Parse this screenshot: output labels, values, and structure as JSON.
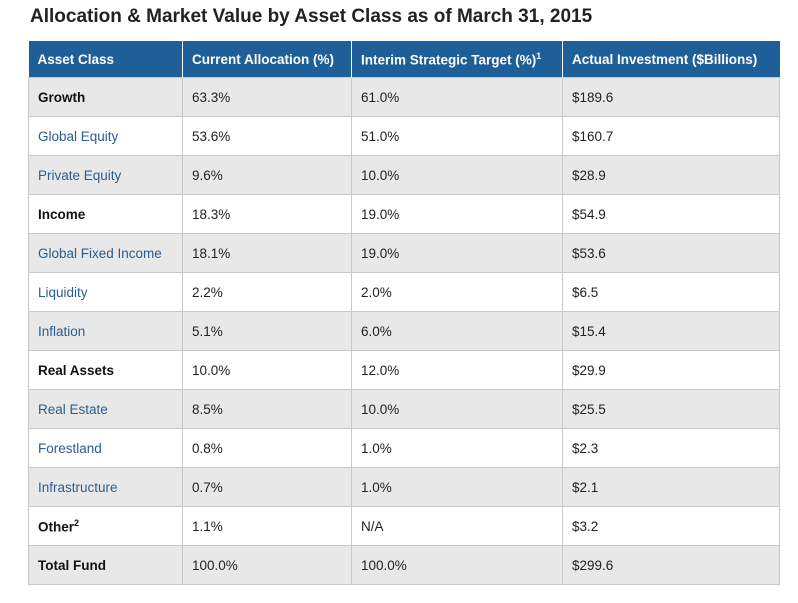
{
  "title": "Allocation & Market Value by Asset Class as of March 31, 2015",
  "colors": {
    "header_bg": "#1f5f99",
    "header_text": "#ffffff",
    "link_text": "#2a5d8f",
    "stripe": "#e8e8e8"
  },
  "table": {
    "headers": {
      "asset_class": "Asset Class",
      "current_allocation": "Current Allocation (%)",
      "interim_target": "Interim Strategic Target (%)",
      "interim_target_sup": "1",
      "actual_investment": "Actual Investment ($Billions)"
    },
    "rows": [
      {
        "asset": "Growth",
        "sup": "",
        "current": "63.3%",
        "target": "61.0%",
        "actual": "$189.6",
        "style": "bold"
      },
      {
        "asset": "Global Equity",
        "sup": "",
        "current": "53.6%",
        "target": "51.0%",
        "actual": "$160.7",
        "style": "sub"
      },
      {
        "asset": "Private Equity",
        "sup": "",
        "current": "9.6%",
        "target": "10.0%",
        "actual": "$28.9",
        "style": "sub"
      },
      {
        "asset": "Income",
        "sup": "",
        "current": "18.3%",
        "target": "19.0%",
        "actual": "$54.9",
        "style": "bold"
      },
      {
        "asset": "Global Fixed Income",
        "sup": "",
        "current": "18.1%",
        "target": "19.0%",
        "actual": "$53.6",
        "style": "sub"
      },
      {
        "asset": "Liquidity",
        "sup": "",
        "current": "2.2%",
        "target": "2.0%",
        "actual": "$6.5",
        "style": "sub"
      },
      {
        "asset": "Inflation",
        "sup": "",
        "current": "5.1%",
        "target": "6.0%",
        "actual": "$15.4",
        "style": "sub"
      },
      {
        "asset": "Real Assets",
        "sup": "",
        "current": "10.0%",
        "target": "12.0%",
        "actual": "$29.9",
        "style": "bold"
      },
      {
        "asset": "Real Estate",
        "sup": "",
        "current": "8.5%",
        "target": "10.0%",
        "actual": "$25.5",
        "style": "sub"
      },
      {
        "asset": "Forestland",
        "sup": "",
        "current": "0.8%",
        "target": "1.0%",
        "actual": "$2.3",
        "style": "sub"
      },
      {
        "asset": "Infrastructure",
        "sup": "",
        "current": "0.7%",
        "target": "1.0%",
        "actual": "$2.1",
        "style": "sub"
      },
      {
        "asset": "Other",
        "sup": "2",
        "current": "1.1%",
        "target": "N/A",
        "actual": "$3.2",
        "style": "bold"
      },
      {
        "asset": "Total Fund",
        "sup": "",
        "current": "100.0%",
        "target": "100.0%",
        "actual": "$299.6",
        "style": "bold"
      }
    ]
  }
}
